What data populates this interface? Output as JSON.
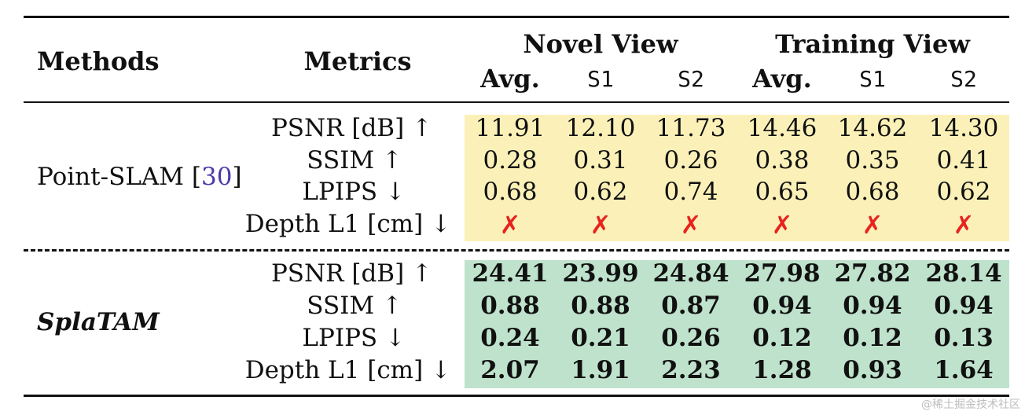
{
  "table": {
    "header": {
      "methods": "Methods",
      "metrics": "Metrics",
      "novel_view": "Novel View",
      "training_view": "Training View",
      "subcolumns": [
        "Avg.",
        "S1",
        "S2",
        "Avg.",
        "S1",
        "S2"
      ]
    },
    "point_slam": {
      "method": "Point-SLAM [",
      "citation": "30",
      "method_close": "]",
      "metrics": [
        "PSNR [dB] ↑",
        "SSIM ↑",
        "LPIPS ↓",
        "Depth L1 [cm] ↓"
      ],
      "rows": [
        [
          "11.91",
          "12.10",
          "11.73",
          "14.46",
          "14.62",
          "14.30"
        ],
        [
          "0.28",
          "0.31",
          "0.26",
          "0.38",
          "0.35",
          "0.41"
        ],
        [
          "0.68",
          "0.62",
          "0.74",
          "0.65",
          "0.68",
          "0.62"
        ],
        [
          "✗",
          "✗",
          "✗",
          "✗",
          "✗",
          "✗"
        ]
      ]
    },
    "splatam": {
      "method": "SplaTAM",
      "metrics": [
        "PSNR [dB] ↑",
        "SSIM ↑",
        "LPIPS ↓",
        "Depth L1 [cm] ↓"
      ],
      "rows": [
        [
          "24.41",
          "23.99",
          "24.84",
          "27.98",
          "27.82",
          "28.14"
        ],
        [
          "0.88",
          "0.88",
          "0.87",
          "0.94",
          "0.94",
          "0.94"
        ],
        [
          "0.24",
          "0.21",
          "0.26",
          "0.12",
          "0.12",
          "0.13"
        ],
        [
          "2.07",
          "1.91",
          "2.23",
          "1.28",
          "0.93",
          "1.64"
        ]
      ]
    }
  },
  "colors": {
    "point_slam_band": "#fbf1b8",
    "splatam_band": "#bfe2cc",
    "cross": "#e8231f",
    "citation": "#4b3aa8"
  },
  "watermark": "@稀土掘金技术社区"
}
